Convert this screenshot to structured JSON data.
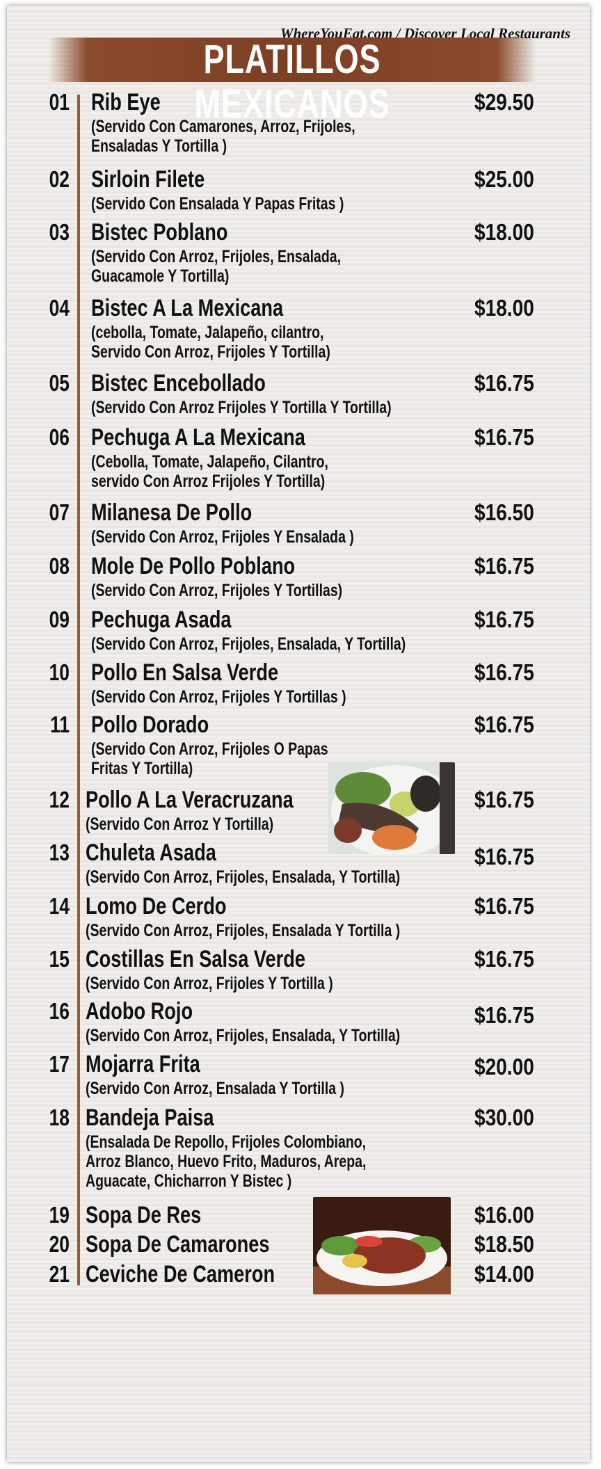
{
  "watermark": "WhereYouEat.com / Discover Local Restaurants",
  "header": {
    "title": "PLATILLOS MEXICANOS"
  },
  "items": [
    {
      "num": "01",
      "name": "Rib Eye",
      "price": "$29.50",
      "desc": [
        "(Servido Con Camarones, Arroz, Frijoles,",
        "Ensaladas Y Tortilla )"
      ]
    },
    {
      "num": "02",
      "name": "Sirloin Filete",
      "price": "$25.00",
      "desc": [
        "(Servido Con Ensalada Y Papas Fritas )"
      ]
    },
    {
      "num": "03",
      "name": "Bistec Poblano",
      "price": "$18.00",
      "desc": [
        "(Servido Con Arroz, Frijoles, Ensalada,",
        "Guacamole Y Tortilla)"
      ]
    },
    {
      "num": "04",
      "name": "Bistec A La Mexicana",
      "price": "$18.00",
      "desc": [
        "(cebolla, Tomate, Jalapeño, cilantro,",
        "Servido Con Arroz, Frijoles Y Tortilla)"
      ]
    },
    {
      "num": "05",
      "name": "Bistec Encebollado",
      "price": "$16.75",
      "desc": [
        "(Servido Con Arroz Frijoles Y Tortilla Y Tortilla)"
      ]
    },
    {
      "num": "06",
      "name": "Pechuga A La Mexicana",
      "price": "$16.75",
      "desc": [
        "(Cebolla, Tomate, Jalapeño, Cilantro,",
        "servido Con Arroz Frijoles Y Tortilla)"
      ]
    },
    {
      "num": "07",
      "name": "Milanesa De Pollo",
      "price": "$16.50",
      "desc": [
        "(Servido Con Arroz,  Frijoles Y Ensalada )"
      ]
    },
    {
      "num": "08",
      "name": "Mole De Pollo Poblano",
      "price": "$16.75",
      "desc": [
        "(Servido Con Arroz, Frijoles Y Tortillas)"
      ]
    },
    {
      "num": "09",
      "name": "Pechuga Asada",
      "price": "$16.75",
      "desc": [
        "(Servido Con Arroz, Frijoles, Ensalada, Y Tortilla)"
      ]
    },
    {
      "num": "10",
      "name": "Pollo En Salsa Verde",
      "price": "$16.75",
      "desc": [
        "(Servido Con Arroz, Frijoles Y Tortillas )"
      ]
    },
    {
      "num": "11",
      "name": "Pollo Dorado",
      "price": "$16.75",
      "desc": [
        "(Servido Con Arroz, Frijoles O Papas",
        "Fritas Y Tortilla)"
      ]
    },
    {
      "num": "12",
      "name": "Pollo A La Veracruzana",
      "price": "$16.75",
      "desc": [
        "(Servido Con  Arroz Y Tortilla)"
      ]
    },
    {
      "num": "13",
      "name": "Chuleta Asada",
      "price": "$16.75",
      "desc": [
        "(Servido Con Arroz, Frijoles, Ensalada, Y Tortilla)"
      ]
    },
    {
      "num": "14",
      "name": "Lomo De Cerdo",
      "price": "$16.75",
      "desc": [
        "(Servido Con Arroz, Frijoles, Ensalada Y Tortilla )"
      ]
    },
    {
      "num": "15",
      "name": "Costillas En Salsa Verde",
      "price": "$16.75",
      "desc": [
        "(Servido Con Arroz, Frijoles  Y Tortilla )"
      ]
    },
    {
      "num": "16",
      "name": "Adobo Rojo",
      "price": "$16.75",
      "desc": [
        "(Servido Con Arroz, Frijoles, Ensalada, Y Tortilla)"
      ]
    },
    {
      "num": "17",
      "name": "Mojarra Frita",
      "price": "$20.00",
      "desc": [
        "(Servido Con Arroz, Ensalada Y Tortilla )"
      ]
    },
    {
      "num": "18",
      "name": "Bandeja Paisa",
      "price": "$30.00",
      "desc": [
        "(Ensalada De Repollo, Frijoles Colombiano,",
        "Arroz Blanco, Huevo Frito, Maduros, Arepa,",
        "Aguacate, Chicharron Y Bistec )"
      ]
    },
    {
      "num": "19",
      "name": "Sopa De Res",
      "price": "$16.00",
      "desc": []
    },
    {
      "num": "20",
      "name": "Sopa De Camarones",
      "price": "$18.50",
      "desc": []
    },
    {
      "num": "21",
      "name": "Ceviche De Cameron",
      "price": "$14.00",
      "desc": []
    }
  ],
  "colors": {
    "band": "#7d3f24",
    "rule": "#9a5a32",
    "text": "#111111"
  }
}
